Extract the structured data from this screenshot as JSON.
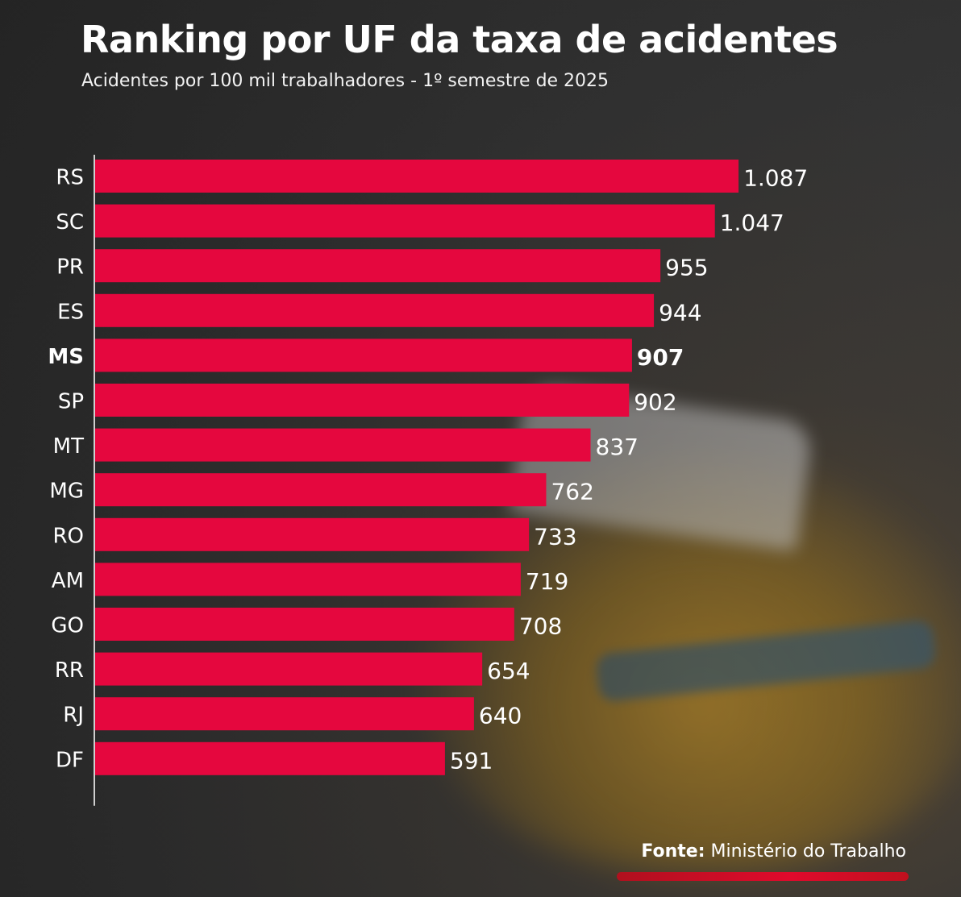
{
  "header": {
    "title": "Ranking por UF da taxa de acidentes",
    "subtitle": "Acidentes por 100 mil trabalhadores - 1º semestre de 2025"
  },
  "chart_data": {
    "type": "bar",
    "orientation": "horizontal",
    "title": "Ranking por UF da taxa de acidentes",
    "subtitle": "Acidentes por 100 mil trabalhadores - 1º semestre de 2025",
    "categories": [
      "RS",
      "SC",
      "PR",
      "ES",
      "MS",
      "SP",
      "MT",
      "MG",
      "RO",
      "AM",
      "GO",
      "RR",
      "RJ",
      "DF"
    ],
    "values": [
      1087,
      1047,
      955,
      944,
      907,
      902,
      837,
      762,
      733,
      719,
      708,
      654,
      640,
      591
    ],
    "value_labels": [
      "1.087",
      "1.047",
      "955",
      "944",
      "907",
      "902",
      "837",
      "762",
      "733",
      "719",
      "708",
      "654",
      "640",
      "591"
    ],
    "highlight": "MS",
    "bar_color": "#e5073e",
    "xlabel": "",
    "ylabel": "",
    "legend": "none",
    "grid": false
  },
  "footer": {
    "source_key": "Fonte:",
    "source_value": "Ministério do Trabalho",
    "accent_color": "#e00a2c"
  }
}
